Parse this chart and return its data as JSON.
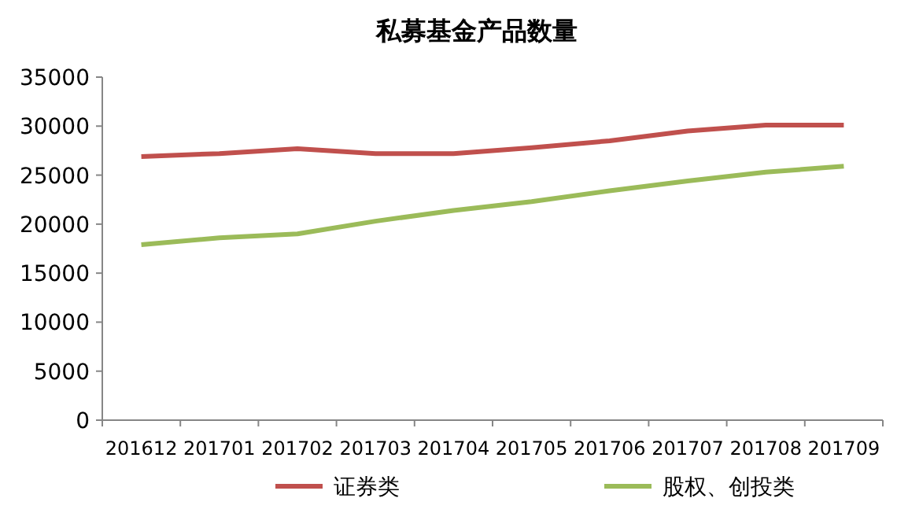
{
  "chart_data": {
    "type": "line",
    "title": "私募基金产品数量",
    "categories": [
      "201612",
      "201701",
      "201702",
      "201703",
      "201704",
      "201705",
      "201706",
      "201707",
      "201708",
      "201709"
    ],
    "series": [
      {
        "name": "证券类",
        "color": "#c0504d",
        "values": [
          26900,
          27200,
          27700,
          27200,
          27200,
          27800,
          28500,
          29500,
          30100,
          30100
        ]
      },
      {
        "name": "股权、创投类",
        "color": "#9bbb59",
        "values": [
          17900,
          18600,
          19000,
          20300,
          21400,
          22300,
          23400,
          24400,
          25300,
          25900
        ]
      }
    ],
    "ylim": [
      0,
      35000
    ],
    "yticks": [
      0,
      5000,
      10000,
      15000,
      20000,
      25000,
      30000,
      35000
    ],
    "legend": "bottom"
  }
}
